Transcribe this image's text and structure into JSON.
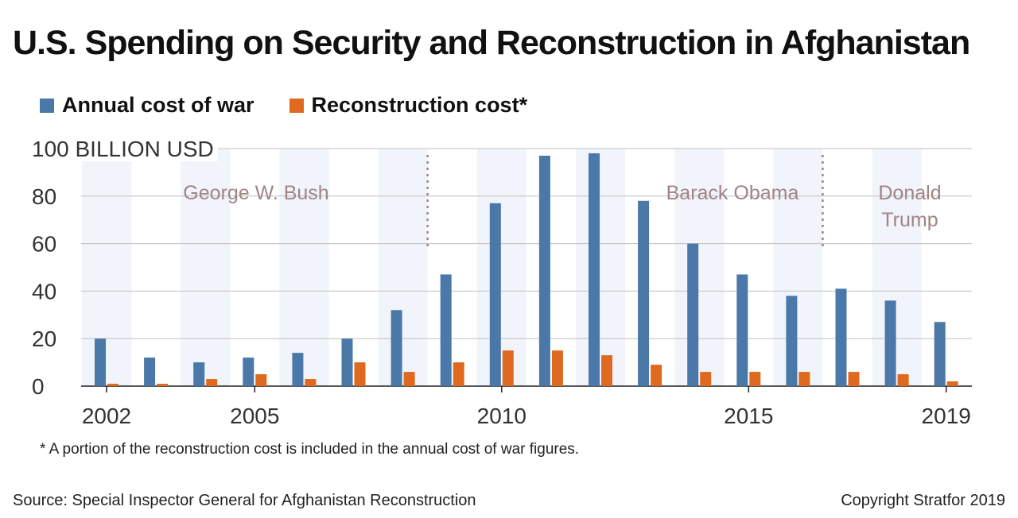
{
  "title": "U.S. Spending on Security and Reconstruction in Afghanistan",
  "legend": [
    {
      "label": "Annual cost of war",
      "color": "#4a78a8"
    },
    {
      "label": "Reconstruction cost*",
      "color": "#df6a1f"
    }
  ],
  "footnote": "* A portion of the reconstruction cost is included in the annual cost of war figures.",
  "source": "Source: Special Inspector General for Afghanistan Reconstruction",
  "copyright": "Copyright Stratfor 2019",
  "chart_data": {
    "type": "bar",
    "title": "U.S. Spending on Security and Reconstruction in Afghanistan",
    "ylabel": "BILLION USD",
    "y_unit_label": "100 BILLION USD",
    "ylim": [
      0,
      100
    ],
    "yticks": [
      0,
      20,
      40,
      60,
      80,
      100
    ],
    "categories": [
      2002,
      2003,
      2004,
      2005,
      2006,
      2007,
      2008,
      2009,
      2010,
      2011,
      2012,
      2013,
      2014,
      2015,
      2016,
      2017,
      2018,
      2019
    ],
    "x_tick_labels": [
      2002,
      2005,
      2010,
      2015,
      2019
    ],
    "series": [
      {
        "name": "Annual cost of war",
        "color": "#4a78a8",
        "values": [
          20,
          12,
          10,
          12,
          14,
          20,
          32,
          47,
          77,
          97,
          98,
          78,
          60,
          47,
          38,
          41,
          36,
          27
        ]
      },
      {
        "name": "Reconstruction cost*",
        "color": "#df6a1f",
        "values": [
          1,
          1,
          3,
          5,
          3,
          10,
          6,
          10,
          15,
          15,
          13,
          9,
          6,
          6,
          6,
          6,
          5,
          2
        ]
      }
    ],
    "shaded_years": [
      2002,
      2004,
      2006,
      2008,
      2010,
      2012,
      2014,
      2016,
      2018
    ],
    "shade_color": "#f1f4fb",
    "grid": true,
    "legend_placement": "top-left",
    "annotations": [
      {
        "text": "George W. Bush",
        "start_year": 2002,
        "end_year": 2008.5
      },
      {
        "text": "Barack Obama",
        "start_year": 2008.5,
        "end_year": 2016.5
      },
      {
        "text": "Donald Trump",
        "start_year": 2016.5,
        "end_year": 2019
      }
    ],
    "term_dividers": [
      2008.5,
      2016.5
    ],
    "annotation_color": "#a08585"
  }
}
